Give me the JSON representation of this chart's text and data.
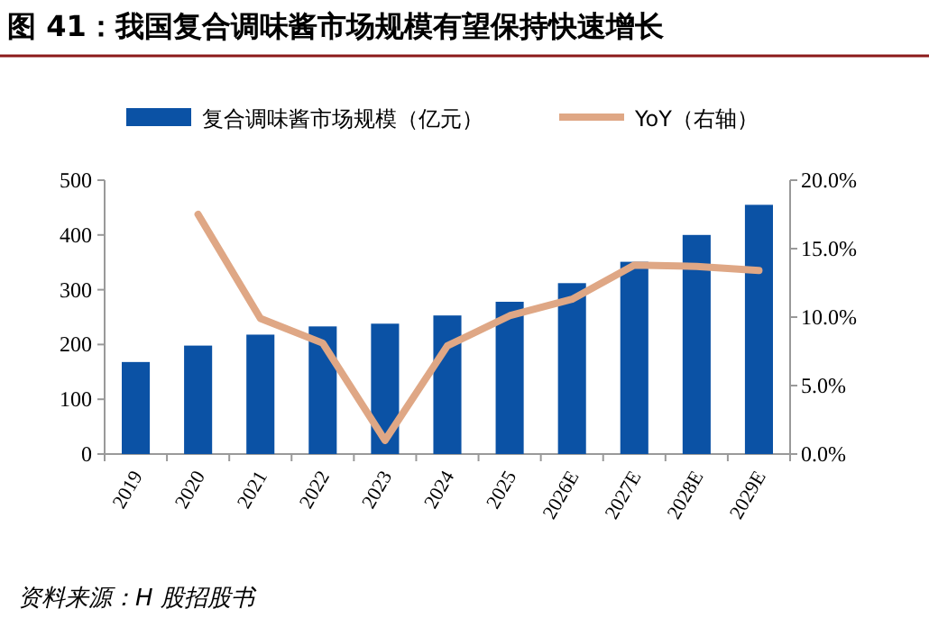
{
  "chart_data": {
    "type": "bar",
    "title": "图 41：我国复合调味酱市场规模有望保持快速增长",
    "categories": [
      "2019",
      "2020",
      "2021",
      "2022",
      "2023",
      "2024",
      "2025",
      "2026E",
      "2027E",
      "2028E",
      "2029E"
    ],
    "series": [
      {
        "name": "复合调味酱市场规模（亿元）",
        "color": "#0b52a5",
        "values": [
          168,
          198,
          218,
          233,
          238,
          253,
          278,
          312,
          351,
          400,
          455
        ]
      },
      {
        "name": "YoY（右轴）",
        "type": "line",
        "axis": "y2",
        "color": "#dfa785",
        "values": [
          null,
          17.5,
          9.9,
          8.1,
          1.0,
          7.9,
          10.1,
          11.3,
          13.8,
          13.7,
          13.4
        ]
      }
    ],
    "ylim": [
      0,
      500
    ],
    "yticks": [
      0,
      100,
      200,
      300,
      400,
      500
    ],
    "y2lim": [
      0,
      20
    ],
    "y2ticks": [
      {
        "value": 0,
        "label": "0.0%"
      },
      {
        "value": 5,
        "label": "5.0%"
      },
      {
        "value": 10,
        "label": "10.0%"
      },
      {
        "value": 15,
        "label": "15.0%"
      },
      {
        "value": 20,
        "label": "20.0%"
      }
    ],
    "legend": "top",
    "grid": false,
    "annotations": [
      "资料来源：H 股招股书"
    ]
  }
}
